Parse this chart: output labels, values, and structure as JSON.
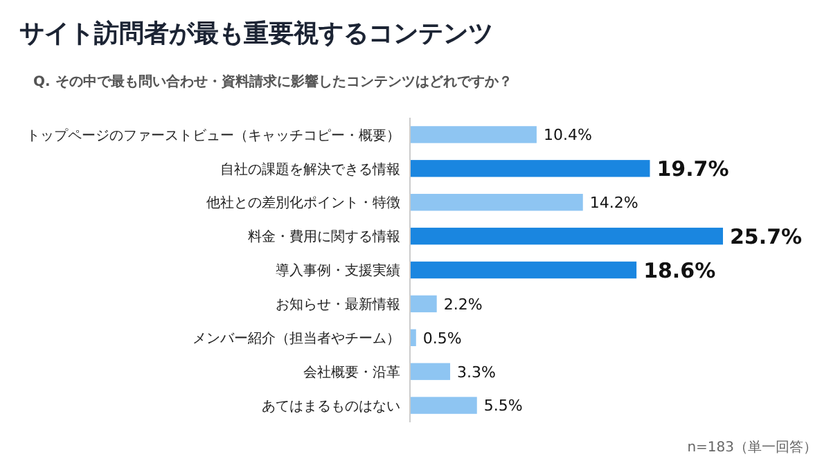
{
  "chart_data": {
    "type": "bar",
    "orientation": "horizontal",
    "title": "サイト訪問者が最も重要視するコンテンツ",
    "subtitle": "Q. その中で最も問い合わせ・資料請求に影響したコンテンツはどれですか？",
    "categories": [
      "トップページのファーストビュー（キャッチコピー・概要）",
      "自社の課題を解決できる情報",
      "他社との差別化ポイント・特徴",
      "料金・費用に関する情報",
      "導入事例・支援実績",
      "お知らせ・最新情報",
      "メンバー紹介（担当者やチーム）",
      "会社概要・沿革",
      "あてはまるものはない"
    ],
    "values": [
      10.4,
      19.7,
      14.2,
      25.7,
      18.6,
      2.2,
      0.5,
      3.3,
      5.5
    ],
    "value_labels": [
      "10.4%",
      "19.7%",
      "14.2%",
      "25.7%",
      "18.6%",
      "2.2%",
      "0.5%",
      "3.3%",
      "5.5%"
    ],
    "colors": [
      "#8ec5f2",
      "#1a86e0",
      "#8ec5f2",
      "#1a86e0",
      "#1a86e0",
      "#8ec5f2",
      "#8ec5f2",
      "#8ec5f2",
      "#8ec5f2"
    ],
    "annotations": [
      "n=183（単一回答）"
    ]
  }
}
